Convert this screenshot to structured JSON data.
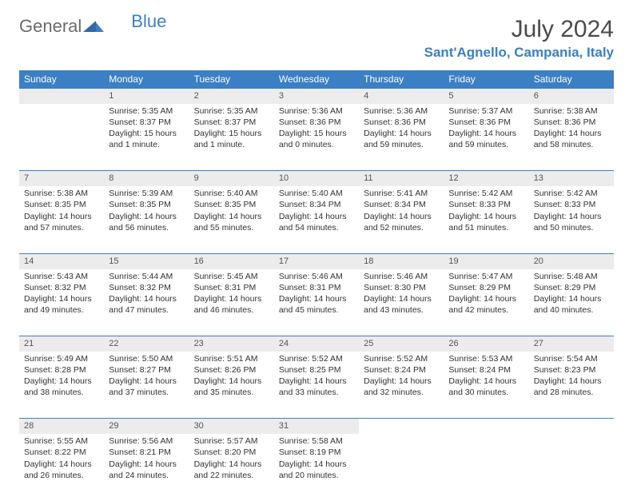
{
  "logo": {
    "text1": "General",
    "text2": "Blue"
  },
  "title": "July 2024",
  "location": "Sant'Agnello, Campania, Italy",
  "colors": {
    "header_bg": "#3b7fc4",
    "header_fg": "#ffffff",
    "daynum_bg": "#ececec",
    "text": "#333333",
    "title_color": "#4a4a4a",
    "location_color": "#3b7fc4"
  },
  "weekdays": [
    "Sunday",
    "Monday",
    "Tuesday",
    "Wednesday",
    "Thursday",
    "Friday",
    "Saturday"
  ],
  "weeks": [
    [
      null,
      {
        "n": "1",
        "sr": "5:35 AM",
        "ss": "8:37 PM",
        "dl": "15 hours and 1 minute."
      },
      {
        "n": "2",
        "sr": "5:35 AM",
        "ss": "8:37 PM",
        "dl": "15 hours and 1 minute."
      },
      {
        "n": "3",
        "sr": "5:36 AM",
        "ss": "8:36 PM",
        "dl": "15 hours and 0 minutes."
      },
      {
        "n": "4",
        "sr": "5:36 AM",
        "ss": "8:36 PM",
        "dl": "14 hours and 59 minutes."
      },
      {
        "n": "5",
        "sr": "5:37 AM",
        "ss": "8:36 PM",
        "dl": "14 hours and 59 minutes."
      },
      {
        "n": "6",
        "sr": "5:38 AM",
        "ss": "8:36 PM",
        "dl": "14 hours and 58 minutes."
      }
    ],
    [
      {
        "n": "7",
        "sr": "5:38 AM",
        "ss": "8:35 PM",
        "dl": "14 hours and 57 minutes."
      },
      {
        "n": "8",
        "sr": "5:39 AM",
        "ss": "8:35 PM",
        "dl": "14 hours and 56 minutes."
      },
      {
        "n": "9",
        "sr": "5:40 AM",
        "ss": "8:35 PM",
        "dl": "14 hours and 55 minutes."
      },
      {
        "n": "10",
        "sr": "5:40 AM",
        "ss": "8:34 PM",
        "dl": "14 hours and 54 minutes."
      },
      {
        "n": "11",
        "sr": "5:41 AM",
        "ss": "8:34 PM",
        "dl": "14 hours and 52 minutes."
      },
      {
        "n": "12",
        "sr": "5:42 AM",
        "ss": "8:33 PM",
        "dl": "14 hours and 51 minutes."
      },
      {
        "n": "13",
        "sr": "5:42 AM",
        "ss": "8:33 PM",
        "dl": "14 hours and 50 minutes."
      }
    ],
    [
      {
        "n": "14",
        "sr": "5:43 AM",
        "ss": "8:32 PM",
        "dl": "14 hours and 49 minutes."
      },
      {
        "n": "15",
        "sr": "5:44 AM",
        "ss": "8:32 PM",
        "dl": "14 hours and 47 minutes."
      },
      {
        "n": "16",
        "sr": "5:45 AM",
        "ss": "8:31 PM",
        "dl": "14 hours and 46 minutes."
      },
      {
        "n": "17",
        "sr": "5:46 AM",
        "ss": "8:31 PM",
        "dl": "14 hours and 45 minutes."
      },
      {
        "n": "18",
        "sr": "5:46 AM",
        "ss": "8:30 PM",
        "dl": "14 hours and 43 minutes."
      },
      {
        "n": "19",
        "sr": "5:47 AM",
        "ss": "8:29 PM",
        "dl": "14 hours and 42 minutes."
      },
      {
        "n": "20",
        "sr": "5:48 AM",
        "ss": "8:29 PM",
        "dl": "14 hours and 40 minutes."
      }
    ],
    [
      {
        "n": "21",
        "sr": "5:49 AM",
        "ss": "8:28 PM",
        "dl": "14 hours and 38 minutes."
      },
      {
        "n": "22",
        "sr": "5:50 AM",
        "ss": "8:27 PM",
        "dl": "14 hours and 37 minutes."
      },
      {
        "n": "23",
        "sr": "5:51 AM",
        "ss": "8:26 PM",
        "dl": "14 hours and 35 minutes."
      },
      {
        "n": "24",
        "sr": "5:52 AM",
        "ss": "8:25 PM",
        "dl": "14 hours and 33 minutes."
      },
      {
        "n": "25",
        "sr": "5:52 AM",
        "ss": "8:24 PM",
        "dl": "14 hours and 32 minutes."
      },
      {
        "n": "26",
        "sr": "5:53 AM",
        "ss": "8:24 PM",
        "dl": "14 hours and 30 minutes."
      },
      {
        "n": "27",
        "sr": "5:54 AM",
        "ss": "8:23 PM",
        "dl": "14 hours and 28 minutes."
      }
    ],
    [
      {
        "n": "28",
        "sr": "5:55 AM",
        "ss": "8:22 PM",
        "dl": "14 hours and 26 minutes."
      },
      {
        "n": "29",
        "sr": "5:56 AM",
        "ss": "8:21 PM",
        "dl": "14 hours and 24 minutes."
      },
      {
        "n": "30",
        "sr": "5:57 AM",
        "ss": "8:20 PM",
        "dl": "14 hours and 22 minutes."
      },
      {
        "n": "31",
        "sr": "5:58 AM",
        "ss": "8:19 PM",
        "dl": "14 hours and 20 minutes."
      },
      null,
      null,
      null
    ]
  ],
  "labels": {
    "sunrise": "Sunrise:",
    "sunset": "Sunset:",
    "daylight": "Daylight:"
  }
}
